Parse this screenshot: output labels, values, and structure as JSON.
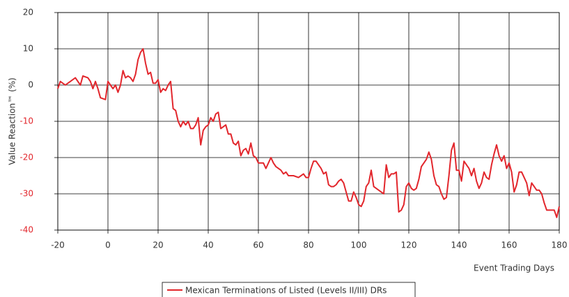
{
  "chart_data": {
    "type": "line",
    "y_axis_label": "Value Reaction™ (%)",
    "x_axis_label": "Event Trading Days",
    "xlim": [
      -20,
      180
    ],
    "xticks": [
      -20,
      0,
      20,
      40,
      60,
      80,
      100,
      120,
      140,
      160,
      180
    ],
    "ylim": [
      -40,
      20
    ],
    "yticks": [
      -40,
      -30,
      -20,
      -10,
      0,
      10,
      20
    ],
    "grid": true,
    "legend": "bottom",
    "series": [
      {
        "name": "Mexican Terminations of Listed (Levels II/III) DRs",
        "color": "#e2262c",
        "x": [
          -20,
          -19,
          -17,
          -15,
          -13,
          -11,
          -10,
          -8,
          -7,
          -6,
          -5,
          -4,
          -3,
          -1,
          0,
          1,
          2,
          3,
          4,
          5,
          6,
          7,
          8,
          9,
          10,
          11,
          12,
          13,
          14,
          15,
          16,
          17,
          18,
          19,
          20,
          21,
          22,
          23,
          24,
          25,
          26,
          27,
          28,
          29,
          30,
          31,
          32,
          33,
          34,
          35,
          36,
          37,
          38,
          39,
          40,
          41,
          42,
          43,
          44,
          45,
          46,
          47,
          48,
          49,
          50,
          51,
          52,
          53,
          54,
          55,
          56,
          57,
          58,
          59,
          60,
          62,
          63,
          64,
          65,
          66,
          67,
          68,
          69,
          70,
          71,
          72,
          74,
          76,
          78,
          79,
          80,
          81,
          82,
          83,
          84,
          85,
          86,
          87,
          88,
          89,
          90,
          91,
          92,
          93,
          94,
          95,
          96,
          97,
          98,
          99,
          100,
          101,
          102,
          103,
          104,
          105,
          106,
          107,
          108,
          109,
          110,
          111,
          112,
          113,
          114,
          115,
          116,
          117,
          118,
          119,
          120,
          121,
          122,
          123,
          124,
          125,
          126,
          127,
          128,
          129,
          130,
          131,
          132,
          133,
          134,
          135,
          136,
          137,
          138,
          139,
          140,
          141,
          142,
          143,
          144,
          145,
          146,
          147,
          148,
          149,
          150,
          151,
          152,
          153,
          154,
          155,
          156,
          157,
          158,
          159,
          160,
          161,
          162,
          163,
          164,
          165,
          166,
          167,
          168,
          169,
          170,
          171,
          172,
          173,
          174,
          175,
          176,
          177,
          178,
          179,
          180
        ],
        "values": [
          -1,
          1,
          0,
          1,
          2,
          0,
          2.5,
          2,
          1,
          -1,
          1,
          -1,
          -3.5,
          -4,
          1,
          0,
          -1,
          0,
          -2,
          0,
          4,
          2,
          2.5,
          2,
          1,
          3,
          7,
          9,
          10,
          6,
          3,
          3.5,
          0.5,
          0.5,
          1.5,
          -2,
          -1,
          -1.5,
          0,
          1,
          -6.5,
          -7,
          -10,
          -11.5,
          -10,
          -11,
          -10,
          -12,
          -12,
          -11,
          -9,
          -16.5,
          -12.5,
          -11.5,
          -11,
          -9,
          -10,
          -8,
          -7.5,
          -12,
          -11.5,
          -11,
          -13.5,
          -13.5,
          -16,
          -16.5,
          -15.5,
          -19.5,
          -18,
          -17.5,
          -19,
          -16,
          -19.5,
          -20,
          -21.5,
          -21.5,
          -23,
          -21.5,
          -20,
          -21.5,
          -22.5,
          -23,
          -23.5,
          -24.5,
          -24,
          -25,
          -25,
          -25.5,
          -24.5,
          -25.5,
          -25.5,
          -23,
          -21,
          -21,
          -22,
          -23,
          -24.5,
          -24,
          -27.5,
          -28,
          -28,
          -27.5,
          -26.5,
          -26,
          -27,
          -29.5,
          -32,
          -32,
          -29.5,
          -31,
          -33,
          -33.5,
          -32,
          -28,
          -27,
          -23.5,
          -28,
          -28.5,
          -29,
          -29.5,
          -30,
          -22,
          -25.5,
          -24.5,
          -24.5,
          -24,
          -35,
          -34.5,
          -33,
          -28,
          -27,
          -28.5,
          -29,
          -28.5,
          -26,
          -22.5,
          -21.5,
          -20.5,
          -18.5,
          -20.5,
          -25,
          -27.5,
          -28,
          -30,
          -31.5,
          -31,
          -25,
          -18,
          -16,
          -23.5,
          -23.5,
          -26.5,
          -21,
          -22,
          -23,
          -25,
          -23,
          -26.5,
          -28.5,
          -27,
          -24,
          -25.5,
          -26,
          -22,
          -19,
          -16.5,
          -19.5,
          -21,
          -19.5,
          -23,
          -21.5,
          -24,
          -29.5,
          -27.5,
          -24,
          -24,
          -25.5,
          -27,
          -30.5,
          -27,
          -28,
          -29,
          -29,
          -30,
          -32.5,
          -34.5,
          -34.5,
          -34.5,
          -34.5,
          -36.5,
          -33.5
        ]
      }
    ]
  }
}
